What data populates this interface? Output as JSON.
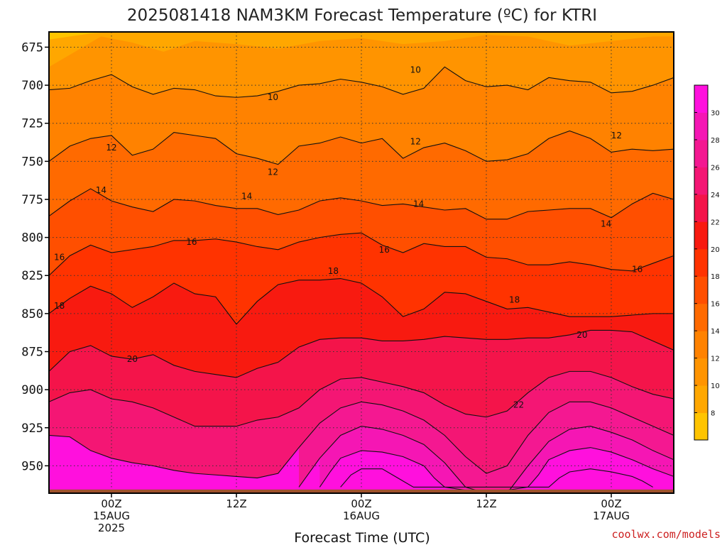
{
  "chart_data": {
    "type": "heatmap",
    "title": "2025081418 NAM3KM Forecast Temperature (ºC) for KTRI",
    "xlabel": "Forecast Time (UTC)",
    "ylabel": "",
    "credit": "coolwx.com/models",
    "y_axis": {
      "unit": "hPa",
      "inverted": true,
      "range": [
        665,
        968
      ],
      "ticks": [
        675,
        700,
        725,
        750,
        775,
        800,
        825,
        850,
        875,
        900,
        925,
        950
      ]
    },
    "x_axis": {
      "unit": "forecast hour",
      "range": [
        -6,
        54
      ],
      "ticks": [
        {
          "hour": 0,
          "lines": [
            "00Z",
            "15AUG",
            "2025"
          ]
        },
        {
          "hour": 12,
          "lines": [
            "12Z"
          ]
        },
        {
          "hour": 24,
          "lines": [
            "00Z",
            "16AUG"
          ]
        },
        {
          "hour": 36,
          "lines": [
            "12Z"
          ]
        },
        {
          "hour": 48,
          "lines": [
            "00Z",
            "17AUG"
          ]
        }
      ]
    },
    "grid": true,
    "surface_pressure_hPa": 960,
    "colorbar": {
      "location": "right",
      "levels": [
        6,
        8,
        10,
        12,
        14,
        16,
        18,
        20,
        22,
        24,
        26,
        28,
        30,
        32
      ],
      "labels": [
        "8",
        "10",
        "12",
        "14",
        "16",
        "18",
        "20",
        "22",
        "24",
        "26",
        "28",
        "30"
      ],
      "colors": [
        "#ffc400",
        "#ffa700",
        "#ff9400",
        "#ff8200",
        "#ff6a00",
        "#ff4f00",
        "#ff3300",
        "#f81a10",
        "#f4144a",
        "#f41674",
        "#f41891",
        "#f516b4",
        "#ff10dd"
      ]
    },
    "contours": [
      {
        "value": 10,
        "label": "10",
        "x": [
          -6,
          -4,
          -2,
          0,
          2,
          4,
          6,
          8,
          10,
          12,
          14,
          16,
          18,
          20,
          22,
          24,
          26,
          28,
          30,
          32,
          34,
          36,
          38,
          40,
          42,
          44,
          46,
          48,
          50,
          52,
          54
        ],
        "y": [
          703,
          702,
          697,
          693,
          701,
          706,
          702,
          703,
          707,
          708,
          707,
          704,
          700,
          699,
          696,
          698,
          701,
          706,
          702,
          688,
          697,
          701,
          700,
          703,
          695,
          697,
          698,
          705,
          704,
          700,
          695
        ]
      },
      {
        "value": 12,
        "label": "12",
        "x": [
          -6,
          -4,
          -2,
          0,
          2,
          4,
          6,
          8,
          10,
          12,
          14,
          16,
          18,
          20,
          22,
          24,
          26,
          28,
          30,
          32,
          34,
          36,
          38,
          40,
          42,
          44,
          46,
          48,
          50,
          52,
          54
        ],
        "y": [
          750,
          740,
          735,
          733,
          746,
          742,
          731,
          733,
          735,
          745,
          748,
          752,
          740,
          738,
          734,
          738,
          735,
          748,
          741,
          738,
          743,
          750,
          749,
          745,
          735,
          730,
          735,
          744,
          742,
          743,
          742
        ]
      },
      {
        "value": 14,
        "label": "14",
        "x": [
          -6,
          -4,
          -2,
          0,
          2,
          4,
          6,
          8,
          10,
          12,
          14,
          16,
          18,
          20,
          22,
          24,
          26,
          28,
          30,
          32,
          34,
          36,
          38,
          40,
          42,
          44,
          46,
          48,
          50,
          52,
          54
        ],
        "y": [
          786,
          776,
          768,
          776,
          780,
          783,
          775,
          776,
          779,
          781,
          781,
          785,
          782,
          776,
          774,
          776,
          779,
          778,
          780,
          782,
          781,
          788,
          788,
          783,
          782,
          781,
          781,
          787,
          778,
          771,
          775
        ]
      },
      {
        "value": 16,
        "label": "16",
        "x": [
          -6,
          -4,
          -2,
          0,
          2,
          4,
          6,
          8,
          10,
          12,
          14,
          16,
          18,
          20,
          22,
          24,
          26,
          28,
          30,
          32,
          34,
          36,
          38,
          40,
          42,
          44,
          46,
          48,
          50,
          52,
          54
        ],
        "y": [
          825,
          812,
          805,
          810,
          808,
          806,
          802,
          802,
          801,
          803,
          806,
          808,
          803,
          800,
          798,
          797,
          805,
          810,
          804,
          806,
          806,
          813,
          814,
          818,
          818,
          816,
          818,
          821,
          822,
          817,
          812
        ]
      },
      {
        "value": 18,
        "label": "18",
        "x": [
          -6,
          -4,
          -2,
          0,
          2,
          4,
          6,
          8,
          10,
          12,
          14,
          16,
          18,
          20,
          22,
          24,
          26,
          28,
          30,
          32,
          34,
          36,
          38,
          40,
          42,
          44,
          46,
          48,
          50,
          52,
          54
        ],
        "y": [
          850,
          840,
          832,
          837,
          846,
          839,
          830,
          837,
          839,
          857,
          842,
          831,
          828,
          828,
          827,
          830,
          839,
          852,
          847,
          836,
          837,
          842,
          847,
          846,
          849,
          852,
          852,
          852,
          851,
          850,
          850
        ]
      },
      {
        "value": 20,
        "label": "20",
        "x": [
          -6,
          -4,
          -2,
          0,
          2,
          4,
          6,
          8,
          10,
          12,
          14,
          16,
          18,
          20,
          22,
          24,
          26,
          28,
          30,
          32,
          34,
          36,
          38,
          40,
          42,
          44,
          46,
          48,
          50,
          52,
          54
        ],
        "y": [
          888,
          875,
          871,
          878,
          880,
          877,
          884,
          888,
          890,
          892,
          886,
          882,
          872,
          867,
          866,
          866,
          868,
          868,
          867,
          865,
          866,
          867,
          867,
          866,
          866,
          864,
          861,
          861,
          862,
          868,
          874
        ]
      },
      {
        "value": 22,
        "label": "22",
        "x": [
          -6,
          -4,
          -2,
          0,
          2,
          4,
          6,
          8,
          10,
          12,
          14,
          16,
          18,
          20,
          22,
          24,
          26,
          28,
          30,
          32,
          34,
          36,
          38,
          40,
          42,
          44,
          46,
          48,
          50,
          52,
          54
        ],
        "y": [
          908,
          902,
          900,
          906,
          908,
          912,
          918,
          924,
          924,
          924,
          920,
          918,
          912,
          900,
          893,
          892,
          895,
          898,
          902,
          910,
          916,
          918,
          914,
          902,
          892,
          888,
          888,
          892,
          898,
          903,
          906
        ]
      },
      {
        "value": 24,
        "label": "",
        "x": [
          -6,
          -4,
          -2,
          0,
          2,
          4,
          6,
          8,
          10,
          12,
          14,
          16,
          18,
          20,
          22,
          24,
          26,
          28,
          30,
          32,
          34,
          36,
          38,
          40,
          42,
          44,
          46,
          48,
          50,
          52,
          54
        ],
        "y": [
          930,
          931,
          940,
          945,
          948,
          950,
          953,
          955,
          956,
          957,
          958,
          955,
          938,
          922,
          912,
          908,
          910,
          914,
          920,
          930,
          944,
          955,
          950,
          930,
          915,
          908,
          908,
          912,
          918,
          924,
          930
        ]
      },
      {
        "value": 26,
        "label": "",
        "x": [
          18,
          20,
          22,
          24,
          26,
          28,
          30,
          32,
          34,
          36,
          38,
          40,
          42,
          44,
          46,
          48,
          50,
          52,
          54
        ],
        "y": [
          964,
          945,
          930,
          924,
          926,
          930,
          936,
          948,
          964,
          968,
          968,
          950,
          934,
          926,
          924,
          928,
          933,
          940,
          946
        ]
      },
      {
        "value": 28,
        "label": "",
        "x": [
          20,
          21,
          22,
          24,
          26,
          28,
          30,
          31,
          32,
          36,
          40,
          41,
          42,
          44,
          46,
          48,
          50,
          52,
          54
        ],
        "y": [
          964,
          954,
          945,
          940,
          941,
          944,
          950,
          958,
          964,
          968,
          964,
          956,
          946,
          940,
          938,
          941,
          946,
          952,
          957
        ]
      },
      {
        "value": 30,
        "label": "",
        "x": [
          22,
          23,
          24,
          26,
          27,
          28,
          29,
          42,
          43,
          44,
          46,
          48,
          50,
          51,
          52
        ],
        "y": [
          964,
          956,
          952,
          952,
          956,
          960,
          964,
          964,
          958,
          954,
          952,
          954,
          957,
          960,
          964
        ]
      }
    ],
    "contour_labels": [
      {
        "text": "10",
        "hour": 15.5,
        "hPa": 708
      },
      {
        "text": "10",
        "hour": 29.2,
        "hPa": 690
      },
      {
        "text": "12",
        "hour": 0,
        "hPa": 741
      },
      {
        "text": "12",
        "hour": 15.5,
        "hPa": 757
      },
      {
        "text": "12",
        "hour": 29.2,
        "hPa": 737
      },
      {
        "text": "12",
        "hour": 48.5,
        "hPa": 733
      },
      {
        "text": "14",
        "hour": -1,
        "hPa": 769
      },
      {
        "text": "14",
        "hour": 13,
        "hPa": 773
      },
      {
        "text": "14",
        "hour": 29.5,
        "hPa": 778
      },
      {
        "text": "14",
        "hour": 47.5,
        "hPa": 791
      },
      {
        "text": "16",
        "hour": -5,
        "hPa": 813
      },
      {
        "text": "16",
        "hour": 7.7,
        "hPa": 803
      },
      {
        "text": "16",
        "hour": 26.2,
        "hPa": 808
      },
      {
        "text": "16",
        "hour": 50.5,
        "hPa": 821
      },
      {
        "text": "18",
        "hour": -5,
        "hPa": 845
      },
      {
        "text": "18",
        "hour": 21.3,
        "hPa": 822
      },
      {
        "text": "18",
        "hour": 38.7,
        "hPa": 841
      },
      {
        "text": "20",
        "hour": 2,
        "hPa": 880
      },
      {
        "text": "20",
        "hour": 45.2,
        "hPa": 864
      },
      {
        "text": "22",
        "hour": 39.1,
        "hPa": 910
      }
    ]
  }
}
